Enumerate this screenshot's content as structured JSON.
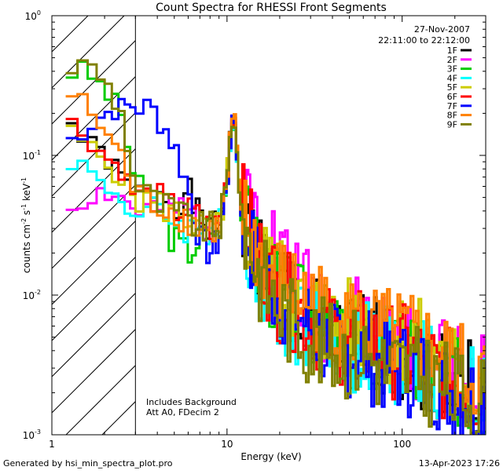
{
  "chart_data": {
    "type": "line",
    "title": "Count Spectra for RHESSI Front Segments",
    "xlabel": "Energy (keV)",
    "ylabel": {
      "base": "counts cm",
      "exp1": "-2",
      "mid1": " s",
      "exp2": "-1",
      "mid2": " keV",
      "exp3": "-1"
    },
    "xscale": "log",
    "yscale": "log",
    "xlim": [
      1,
      300
    ],
    "ylim": [
      0.001,
      1
    ],
    "x_ticks": [
      {
        "value": 1,
        "label": "1"
      },
      {
        "value": 10,
        "label": "10"
      },
      {
        "value": 100,
        "label": "100"
      }
    ],
    "y_ticks": [
      {
        "value": 1,
        "base": "10",
        "exp": "0"
      },
      {
        "value": 0.1,
        "base": "10",
        "exp": "-1"
      },
      {
        "value": 0.01,
        "base": "10",
        "exp": "-2"
      },
      {
        "value": 0.001,
        "base": "10",
        "exp": "-3"
      }
    ],
    "shaded_region": {
      "x_range": [
        1,
        3
      ],
      "style": "hatched"
    },
    "date": "27-Nov-2007",
    "time_range": "22:11:00 to 22:12:00",
    "annotations": [
      "Includes Background",
      "Att A0, FDecim 2"
    ],
    "legend_position": "top-right",
    "series": [
      {
        "name": "1F",
        "color": "#000000",
        "seed": 1,
        "offset": 0.0,
        "values": [
          [
            1.2,
            0.19
          ],
          [
            1.6,
            0.12
          ],
          [
            2.0,
            0.1
          ],
          [
            2.5,
            0.07
          ],
          [
            3.0,
            0.05
          ],
          [
            4.0,
            0.06
          ],
          [
            5.0,
            0.045
          ],
          [
            6.0,
            0.055
          ],
          [
            7.0,
            0.035
          ],
          [
            8.0,
            0.03
          ],
          [
            9.0,
            0.03
          ],
          [
            10.0,
            0.07
          ],
          [
            10.5,
            0.15
          ],
          [
            11.0,
            0.2
          ],
          [
            12.0,
            0.04
          ],
          [
            15.0,
            0.02
          ],
          [
            20.0,
            0.012
          ],
          [
            30.0,
            0.007
          ],
          [
            40.0,
            0.004
          ],
          [
            60.0,
            0.005
          ],
          [
            80.0,
            0.004
          ],
          [
            100.0,
            0.004
          ],
          [
            150.0,
            0.003
          ],
          [
            200.0,
            0.0025
          ],
          [
            280.0,
            0.002
          ]
        ]
      },
      {
        "name": "2F",
        "color": "#ff00ff",
        "seed": 2,
        "offset": 0.05,
        "values": [
          [
            1.2,
            0.04
          ],
          [
            1.6,
            0.05
          ],
          [
            2.0,
            0.055
          ],
          [
            2.5,
            0.05
          ],
          [
            3.0,
            0.04
          ],
          [
            4.0,
            0.04
          ],
          [
            5.0,
            0.04
          ],
          [
            6.0,
            0.04
          ],
          [
            7.0,
            0.035
          ],
          [
            8.0,
            0.03
          ],
          [
            9.0,
            0.035
          ],
          [
            10.0,
            0.06
          ],
          [
            10.5,
            0.14
          ],
          [
            11.0,
            0.2
          ],
          [
            12.0,
            0.05
          ],
          [
            15.0,
            0.04
          ],
          [
            20.0,
            0.02
          ],
          [
            30.0,
            0.01
          ],
          [
            40.0,
            0.006
          ],
          [
            60.0,
            0.006
          ],
          [
            80.0,
            0.005
          ],
          [
            100.0,
            0.004
          ],
          [
            150.0,
            0.004
          ],
          [
            200.0,
            0.003
          ],
          [
            280.0,
            0.0025
          ]
        ]
      },
      {
        "name": "3F",
        "color": "#00cc00",
        "seed": 3,
        "offset": 0.1,
        "values": [
          [
            1.2,
            0.4
          ],
          [
            1.6,
            0.4
          ],
          [
            2.0,
            0.3
          ],
          [
            2.5,
            0.2
          ],
          [
            3.0,
            0.06
          ],
          [
            4.0,
            0.04
          ],
          [
            5.0,
            0.025
          ],
          [
            6.0,
            0.02
          ],
          [
            7.0,
            0.025
          ],
          [
            8.0,
            0.03
          ],
          [
            9.0,
            0.03
          ],
          [
            10.0,
            0.06
          ],
          [
            10.5,
            0.14
          ],
          [
            11.0,
            0.2
          ],
          [
            12.0,
            0.04
          ],
          [
            15.0,
            0.018
          ],
          [
            20.0,
            0.01
          ],
          [
            30.0,
            0.007
          ],
          [
            40.0,
            0.005
          ],
          [
            60.0,
            0.004
          ],
          [
            80.0,
            0.004
          ],
          [
            100.0,
            0.0035
          ],
          [
            150.0,
            0.003
          ],
          [
            200.0,
            0.0025
          ],
          [
            280.0,
            0.002
          ]
        ]
      },
      {
        "name": "4F",
        "color": "#00ffff",
        "seed": 4,
        "offset": 0.15,
        "values": [
          [
            1.2,
            0.1
          ],
          [
            1.6,
            0.08
          ],
          [
            2.0,
            0.06
          ],
          [
            2.5,
            0.05
          ],
          [
            3.0,
            0.035
          ],
          [
            4.0,
            0.04
          ],
          [
            5.0,
            0.035
          ],
          [
            6.0,
            0.03
          ],
          [
            7.0,
            0.03
          ],
          [
            8.0,
            0.028
          ],
          [
            9.0,
            0.03
          ],
          [
            10.0,
            0.06
          ],
          [
            10.5,
            0.14
          ],
          [
            11.0,
            0.2
          ],
          [
            12.0,
            0.04
          ],
          [
            15.0,
            0.015
          ],
          [
            20.0,
            0.008
          ],
          [
            30.0,
            0.006
          ],
          [
            40.0,
            0.005
          ],
          [
            60.0,
            0.004
          ],
          [
            80.0,
            0.004
          ],
          [
            100.0,
            0.0035
          ],
          [
            150.0,
            0.003
          ],
          [
            200.0,
            0.0025
          ],
          [
            280.0,
            0.002
          ]
        ]
      },
      {
        "name": "5F",
        "color": "#cccc00",
        "seed": 5,
        "offset": 0.2,
        "values": [
          [
            1.2,
            0.15
          ],
          [
            1.6,
            0.12
          ],
          [
            2.0,
            0.09
          ],
          [
            2.5,
            0.07
          ],
          [
            3.0,
            0.05
          ],
          [
            4.0,
            0.045
          ],
          [
            5.0,
            0.04
          ],
          [
            6.0,
            0.035
          ],
          [
            7.0,
            0.03
          ],
          [
            8.0,
            0.03
          ],
          [
            9.0,
            0.03
          ],
          [
            10.0,
            0.065
          ],
          [
            10.5,
            0.15
          ],
          [
            11.0,
            0.2
          ],
          [
            12.0,
            0.04
          ],
          [
            15.0,
            0.02
          ],
          [
            20.0,
            0.012
          ],
          [
            30.0,
            0.008
          ],
          [
            40.0,
            0.006
          ],
          [
            60.0,
            0.006
          ],
          [
            80.0,
            0.005
          ],
          [
            100.0,
            0.005
          ],
          [
            150.0,
            0.004
          ],
          [
            200.0,
            0.003
          ],
          [
            280.0,
            0.0025
          ]
        ]
      },
      {
        "name": "6F",
        "color": "#ff0000",
        "seed": 6,
        "offset": 0.25,
        "values": [
          [
            1.2,
            0.18
          ],
          [
            1.6,
            0.14
          ],
          [
            2.0,
            0.1
          ],
          [
            2.5,
            0.08
          ],
          [
            3.0,
            0.05
          ],
          [
            4.0,
            0.05
          ],
          [
            5.0,
            0.04
          ],
          [
            6.0,
            0.04
          ],
          [
            7.0,
            0.035
          ],
          [
            8.0,
            0.03
          ],
          [
            9.0,
            0.032
          ],
          [
            10.0,
            0.07
          ],
          [
            10.5,
            0.16
          ],
          [
            11.0,
            0.21
          ],
          [
            12.0,
            0.045
          ],
          [
            15.0,
            0.02
          ],
          [
            20.0,
            0.01
          ],
          [
            30.0,
            0.007
          ],
          [
            40.0,
            0.005
          ],
          [
            60.0,
            0.005
          ],
          [
            80.0,
            0.004
          ],
          [
            100.0,
            0.004
          ],
          [
            150.0,
            0.003
          ],
          [
            200.0,
            0.0025
          ],
          [
            280.0,
            0.002
          ]
        ]
      },
      {
        "name": "7F",
        "color": "#0000ff",
        "seed": 7,
        "offset": 0.3,
        "values": [
          [
            1.2,
            0.12
          ],
          [
            1.6,
            0.16
          ],
          [
            2.0,
            0.2
          ],
          [
            2.5,
            0.22
          ],
          [
            3.0,
            0.23
          ],
          [
            4.0,
            0.2
          ],
          [
            5.0,
            0.12
          ],
          [
            6.0,
            0.06
          ],
          [
            7.0,
            0.025
          ],
          [
            8.0,
            0.02
          ],
          [
            9.0,
            0.025
          ],
          [
            10.0,
            0.06
          ],
          [
            10.5,
            0.14
          ],
          [
            11.0,
            0.2
          ],
          [
            12.0,
            0.04
          ],
          [
            15.0,
            0.015
          ],
          [
            20.0,
            0.01
          ],
          [
            30.0,
            0.006
          ],
          [
            40.0,
            0.004
          ],
          [
            60.0,
            0.004
          ],
          [
            80.0,
            0.003
          ],
          [
            100.0,
            0.003
          ],
          [
            150.0,
            0.0025
          ],
          [
            200.0,
            0.002
          ],
          [
            280.0,
            0.0018
          ]
        ]
      },
      {
        "name": "8F",
        "color": "#ff8000",
        "seed": 8,
        "offset": 0.35,
        "values": [
          [
            1.2,
            0.3
          ],
          [
            1.6,
            0.22
          ],
          [
            2.0,
            0.15
          ],
          [
            2.5,
            0.1
          ],
          [
            3.0,
            0.05
          ],
          [
            4.0,
            0.045
          ],
          [
            5.0,
            0.04
          ],
          [
            6.0,
            0.035
          ],
          [
            7.0,
            0.03
          ],
          [
            8.0,
            0.03
          ],
          [
            9.0,
            0.03
          ],
          [
            10.0,
            0.06
          ],
          [
            10.5,
            0.15
          ],
          [
            11.0,
            0.21
          ],
          [
            12.0,
            0.04
          ],
          [
            15.0,
            0.02
          ],
          [
            20.0,
            0.012
          ],
          [
            30.0,
            0.009
          ],
          [
            40.0,
            0.007
          ],
          [
            60.0,
            0.006
          ],
          [
            80.0,
            0.005
          ],
          [
            100.0,
            0.005
          ],
          [
            150.0,
            0.004
          ],
          [
            200.0,
            0.003
          ],
          [
            280.0,
            0.0025
          ]
        ]
      },
      {
        "name": "9F",
        "color": "#808000",
        "seed": 9,
        "offset": 0.4,
        "values": [
          [
            1.2,
            0.42
          ],
          [
            1.6,
            0.45
          ],
          [
            2.0,
            0.35
          ],
          [
            2.5,
            0.2
          ],
          [
            3.0,
            0.06
          ],
          [
            4.0,
            0.045
          ],
          [
            5.0,
            0.04
          ],
          [
            6.0,
            0.035
          ],
          [
            7.0,
            0.03
          ],
          [
            8.0,
            0.03
          ],
          [
            9.0,
            0.03
          ],
          [
            10.0,
            0.06
          ],
          [
            10.5,
            0.15
          ],
          [
            11.0,
            0.2
          ],
          [
            12.0,
            0.04
          ],
          [
            15.0,
            0.015
          ],
          [
            20.0,
            0.008
          ],
          [
            30.0,
            0.005
          ],
          [
            40.0,
            0.004
          ],
          [
            60.0,
            0.004
          ],
          [
            80.0,
            0.003
          ],
          [
            100.0,
            0.003
          ],
          [
            150.0,
            0.0025
          ],
          [
            200.0,
            0.002
          ],
          [
            280.0,
            0.0018
          ]
        ]
      }
    ]
  },
  "footer": {
    "generated_by": "Generated by hsi_min_spectra_plot.pro",
    "timestamp": "13-Apr-2023 17:26"
  }
}
